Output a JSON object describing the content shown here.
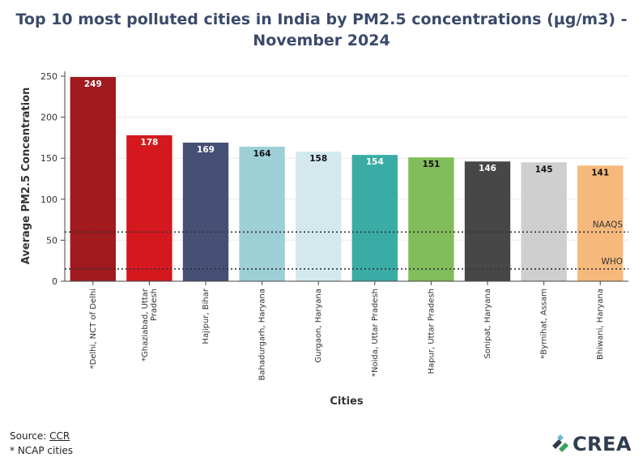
{
  "chart_data": {
    "type": "bar",
    "title_lines": [
      "Top 10 most polluted cities in India by PM2.5 concentrations (µg/m3) -",
      "November 2024"
    ],
    "xlabel": "Cities",
    "ylabel": "Average PM2.5 Concentration",
    "ylim": [
      0,
      250
    ],
    "yticks": [
      0,
      50,
      100,
      150,
      200,
      250
    ],
    "grid": true,
    "categories": [
      [
        "*Delhi, NCT of Delhi"
      ],
      [
        "*Ghaziabad, Uttar",
        "Pradesh"
      ],
      [
        "Hajipur, Bihar"
      ],
      [
        "Bahadurgarh, Haryana"
      ],
      [
        "Gurgaon, Haryana"
      ],
      [
        "*Noida, Uttar Pradesh"
      ],
      [
        "Hapur, Uttar Pradesh"
      ],
      [
        "Sonipat, Haryana"
      ],
      [
        "*Byrnihat, Assam"
      ],
      [
        "Bhiwani, Haryana"
      ]
    ],
    "values": [
      249,
      178,
      169,
      164,
      158,
      154,
      151,
      146,
      145,
      141
    ],
    "colors": [
      "#a01a1e",
      "#d4181d",
      "#465075",
      "#9dcfd6",
      "#d3e9ee",
      "#3aaca5",
      "#82bd5c",
      "#474747",
      "#cfcfcf",
      "#f6b97c"
    ],
    "label_colors": [
      "#ffffff",
      "#ffffff",
      "#ffffff",
      "#111111",
      "#111111",
      "#ffffff",
      "#111111",
      "#ffffff",
      "#111111",
      "#111111"
    ],
    "reference_lines": [
      {
        "name": "NAAQS",
        "value": 60
      },
      {
        "name": "WHO",
        "value": 15
      }
    ]
  },
  "footer": {
    "source_prefix": "Source: ",
    "source_link": "CCR",
    "note": "* NCAP cities"
  },
  "logo": {
    "text": "CREA",
    "colors": [
      "#2f3e4f",
      "#3aa35c",
      "#6cb8d8"
    ]
  }
}
